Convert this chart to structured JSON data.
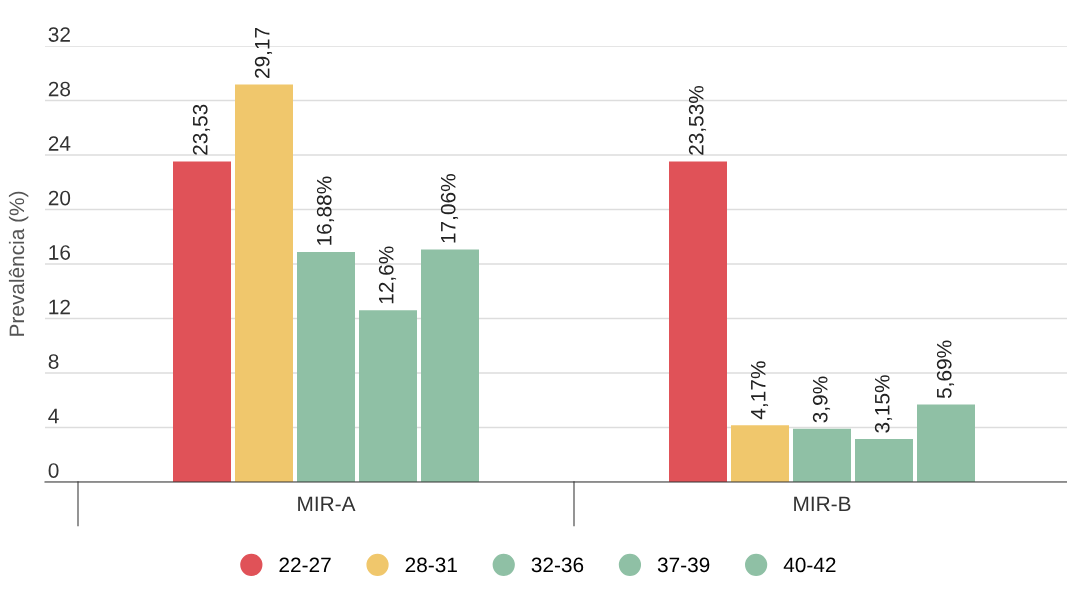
{
  "chart_data": {
    "type": "bar",
    "ylabel": "Prevalência (%)",
    "categories": [
      "MIR-A",
      "MIR-B"
    ],
    "series": [
      {
        "name": "22-27",
        "color": "#e05258",
        "values": [
          23.53,
          23.53
        ],
        "value_labels": [
          "23,53",
          "23,53%"
        ]
      },
      {
        "name": "28-31",
        "color": "#f0c76c",
        "values": [
          29.17,
          4.17
        ],
        "value_labels": [
          "29,17",
          "4,17%"
        ]
      },
      {
        "name": "32-36",
        "color": "#8fc0a5",
        "values": [
          16.88,
          3.9
        ],
        "value_labels": [
          "16,88%",
          "3,9%"
        ]
      },
      {
        "name": "37-39",
        "color": "#8fc0a5",
        "values": [
          12.6,
          3.15
        ],
        "value_labels": [
          "12,6%",
          "3,15%"
        ]
      },
      {
        "name": "40-42",
        "color": "#8fc0a5",
        "values": [
          17.06,
          5.69
        ],
        "value_labels": [
          "17,06%",
          "5,69%"
        ]
      }
    ],
    "ylim": [
      0,
      32
    ],
    "yticks": [
      0,
      4,
      8,
      12,
      16,
      20,
      24,
      28,
      32
    ],
    "grid": "y",
    "legend": "bottom"
  }
}
